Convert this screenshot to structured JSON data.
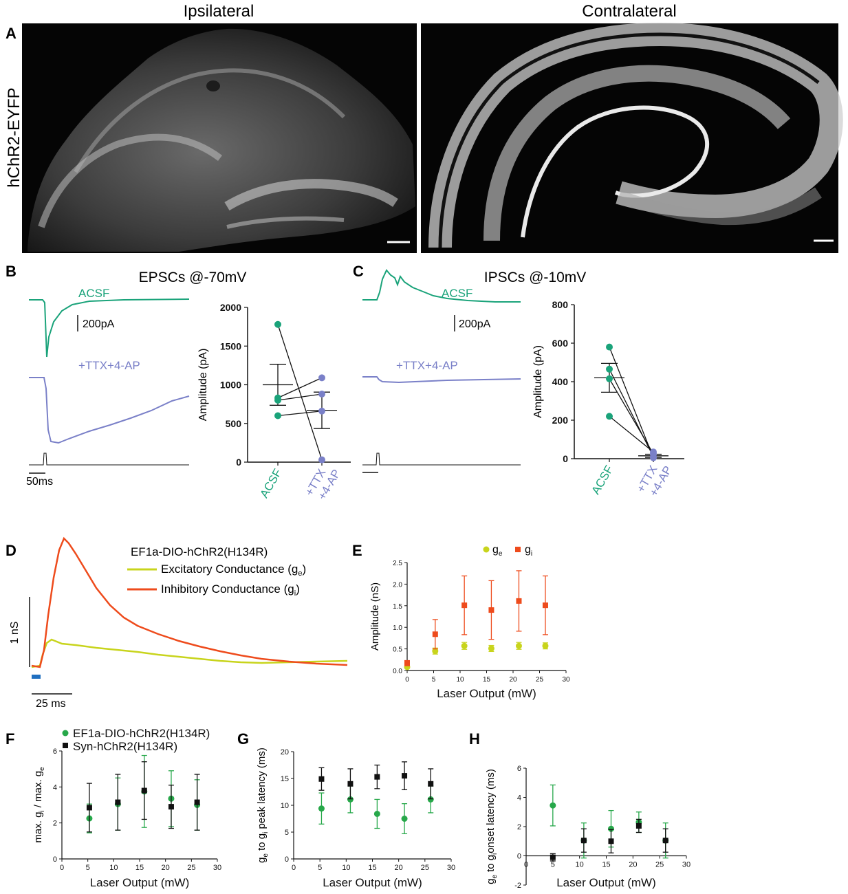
{
  "panel_a": {
    "label": "A",
    "side_label": "hChR2-EYFP",
    "left_title": "Ipsilateral",
    "right_title": "Contralateral"
  },
  "panel_b": {
    "label": "B",
    "title": "EPSCs @-70mV",
    "trace_top": "ACSF",
    "trace_bottom": "+TTX+4-AP",
    "scale_y": "200pA",
    "scale_x": "50ms"
  },
  "panel_c": {
    "label": "C",
    "title": "IPSCs @-10mV",
    "trace_top": "ACSF",
    "trace_bottom": "+TTX+4-AP",
    "scale_y": "200pA"
  },
  "panel_d": {
    "label": "D",
    "legend_title": "EF1a-DIO-hChR2(H134R)",
    "legend_exc": "Excitatory Conductance (g",
    "legend_exc_sub": "e",
    "legend_inh": "Inhibitory Conductance (g",
    "legend_inh_sub": "i",
    "scale_y": "1 nS",
    "scale_x": "25 ms"
  },
  "labels": {
    "e": "E",
    "f": "F",
    "g": "G",
    "h": "H"
  },
  "colors": {
    "acsf": "#1aa37a",
    "ttx": "#7a80c8",
    "ge": "#c8d41c",
    "gi": "#ee4b1c",
    "ef1a": "#27a84a",
    "syn": "#111111",
    "stim": "#1f6fc0"
  },
  "chart_data": [
    {
      "id": "B",
      "type": "scatter",
      "title": "EPSCs @-70mV",
      "ylabel": "Amplitude (pA)",
      "categories": [
        "ACSF",
        "+TTX\n+4-AP"
      ],
      "ylim": [
        0,
        2000
      ],
      "yticks": [
        0,
        500,
        1000,
        1500,
        2000
      ],
      "pairs": [
        [
          1780,
          30
        ],
        [
          830,
          1090
        ],
        [
          800,
          880
        ],
        [
          600,
          660
        ]
      ],
      "mean": [
        1000,
        670
      ],
      "sem": [
        265,
        235
      ]
    },
    {
      "id": "C",
      "type": "scatter",
      "title": "IPSCs @-10mV",
      "ylabel": "Amplitude (pA)",
      "categories": [
        "ACSF",
        "+TTX\n+4-AP"
      ],
      "ylim": [
        0,
        800
      ],
      "yticks": [
        0,
        200,
        400,
        600,
        800
      ],
      "pairs": [
        [
          580,
          5
        ],
        [
          465,
          10
        ],
        [
          415,
          25
        ],
        [
          220,
          35
        ]
      ],
      "mean": [
        420,
        15
      ],
      "sem": [
        75,
        8
      ]
    },
    {
      "id": "E",
      "type": "scatter",
      "xlabel": "Laser Output (mW)",
      "ylabel": "Amplitude (nS)",
      "xlim": [
        0,
        30
      ],
      "ylim": [
        0,
        2.5
      ],
      "xticks": [
        0,
        5,
        10,
        15,
        20,
        25,
        30
      ],
      "yticks": [
        0,
        0.5,
        1.0,
        1.5,
        2.0,
        2.5
      ],
      "ytick_labels": [
        "0.0",
        "0.5",
        "1.0",
        "1.5",
        "2.0",
        "2.5"
      ],
      "legend": [
        "g",
        "g"
      ],
      "legend_subs": [
        "e",
        "i"
      ],
      "series": [
        {
          "name": "ge",
          "x": [
            0,
            5.3,
            10.8,
            15.9,
            21.1,
            26.1
          ],
          "y": [
            0.08,
            0.45,
            0.57,
            0.51,
            0.57,
            0.57
          ],
          "err": [
            0.03,
            0.07,
            0.08,
            0.07,
            0.08,
            0.07
          ]
        },
        {
          "name": "gi",
          "x": [
            0,
            5.3,
            10.8,
            15.9,
            21.1,
            26.1
          ],
          "y": [
            0.17,
            0.84,
            1.51,
            1.4,
            1.61,
            1.51
          ],
          "err": [
            0.06,
            0.34,
            0.68,
            0.68,
            0.7,
            0.68
          ]
        }
      ]
    },
    {
      "id": "F",
      "type": "scatter",
      "xlabel": "Laser Output (mW)",
      "ylabel": "max. g",
      "ylabel_parts": [
        "max. g",
        "i",
        " / max. g",
        "e"
      ],
      "xlim": [
        0,
        30
      ],
      "ylim": [
        0,
        6
      ],
      "xticks": [
        0,
        5,
        10,
        15,
        20,
        25,
        30
      ],
      "yticks": [
        0,
        2,
        4,
        6
      ],
      "legend": [
        "EF1a-DIO-hChR2(H134R)",
        "Syn-hChR2(H134R)"
      ],
      "series": [
        {
          "name": "EF1a-DIO-hChR2(H134R)",
          "x": [
            5.3,
            10.8,
            15.9,
            21.1,
            26.1
          ],
          "y": [
            2.25,
            3.05,
            3.75,
            3.35,
            3.0
          ],
          "err": [
            0.8,
            1.45,
            2.0,
            1.55,
            1.4
          ]
        },
        {
          "name": "Syn-hChR2(H134R)",
          "x": [
            5.3,
            10.8,
            15.9,
            21.1,
            26.1
          ],
          "y": [
            2.85,
            3.15,
            3.8,
            2.9,
            3.15
          ],
          "err": [
            1.35,
            1.55,
            1.6,
            1.2,
            1.55
          ]
        }
      ]
    },
    {
      "id": "G",
      "type": "scatter",
      "xlabel": "Laser Output (mW)",
      "ylabel_parts": [
        "g",
        "e",
        " to g",
        "i",
        " peak latency (ms)"
      ],
      "xlim": [
        0,
        30
      ],
      "ylim": [
        0,
        20
      ],
      "xticks": [
        0,
        5,
        10,
        15,
        20,
        25,
        30
      ],
      "yticks": [
        0,
        5,
        10,
        15,
        20
      ],
      "series": [
        {
          "name": "EF1a-DIO-hChR2(H134R)",
          "x": [
            5.3,
            10.8,
            15.9,
            21.1,
            26.1
          ],
          "y": [
            9.4,
            11.1,
            8.4,
            7.5,
            11.1
          ],
          "err": [
            2.9,
            2.5,
            2.7,
            2.8,
            2.5
          ]
        },
        {
          "name": "Syn-hChR2(H134R)",
          "x": [
            5.3,
            10.8,
            15.9,
            21.1,
            26.1
          ],
          "y": [
            14.9,
            14.0,
            15.3,
            15.5,
            14.0
          ],
          "err": [
            2.1,
            2.8,
            2.2,
            2.6,
            2.8
          ]
        }
      ]
    },
    {
      "id": "H",
      "type": "scatter",
      "xlabel": "Laser Output (mW)",
      "ylabel_parts": [
        "g",
        "e",
        " to g",
        "i",
        "onset latency (ms)"
      ],
      "xlim": [
        0,
        30
      ],
      "ylim": [
        -2,
        6
      ],
      "xticks": [
        0,
        5,
        10,
        15,
        20,
        25,
        30
      ],
      "yticks": [
        -2,
        0,
        2,
        4,
        6
      ],
      "series": [
        {
          "name": "EF1a-DIO-hChR2(H134R)",
          "x": [
            5.0,
            10.8,
            15.9,
            21.1,
            26.1
          ],
          "y": [
            3.45,
            1.05,
            1.85,
            2.3,
            1.05
          ],
          "err": [
            1.4,
            1.2,
            1.25,
            0.7,
            1.2
          ]
        },
        {
          "name": "Syn-hChR2(H134R)",
          "x": [
            5.0,
            10.8,
            15.9,
            21.1,
            26.1
          ],
          "y": [
            -0.1,
            1.05,
            1.0,
            2.05,
            1.05
          ],
          "err": [
            0.25,
            0.8,
            0.8,
            0.45,
            0.8
          ]
        }
      ]
    }
  ]
}
